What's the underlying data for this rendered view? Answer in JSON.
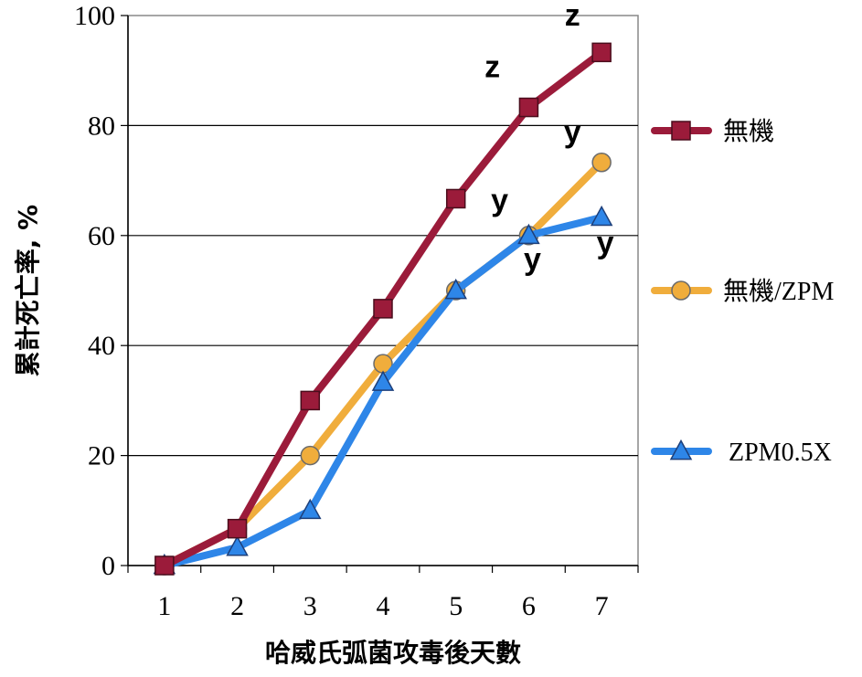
{
  "chart_data": {
    "type": "line",
    "ylabel": "累計死亡率, %",
    "xlabel": "哈威氏弧菌攻毒後天數",
    "x": [
      1,
      2,
      3,
      4,
      5,
      6,
      7
    ],
    "ylim": [
      0,
      100
    ],
    "yticks": [
      0,
      20,
      40,
      60,
      80,
      100
    ],
    "grid": true,
    "legend_position": "right",
    "series": [
      {
        "name": "無機",
        "color": "#9B1B3A",
        "marker": "square",
        "values": [
          0,
          6.7,
          30,
          46.7,
          66.7,
          83.3,
          93.3
        ]
      },
      {
        "name": "無機/ZPM",
        "color": "#F0AD3C",
        "marker": "circle",
        "values": [
          0,
          6.7,
          20,
          36.7,
          50,
          60,
          73.3
        ]
      },
      {
        "name": "ZPM0.5X",
        "color": "#2E86E8",
        "marker": "triangle",
        "values": [
          0,
          3.3,
          10,
          33.3,
          50,
          60,
          63.3
        ]
      }
    ],
    "annotations": [
      {
        "text": "z",
        "x": 5.5,
        "y": 88.8
      },
      {
        "text": "z",
        "x": 6.6,
        "y": 98.2
      },
      {
        "text": "y",
        "x": 6.6,
        "y": 77.0
      },
      {
        "text": "y",
        "x": 5.6,
        "y": 64.5
      },
      {
        "text": "y",
        "x": 6.05,
        "y": 53.8
      },
      {
        "text": "y",
        "x": 7.05,
        "y": 56.8
      }
    ]
  }
}
